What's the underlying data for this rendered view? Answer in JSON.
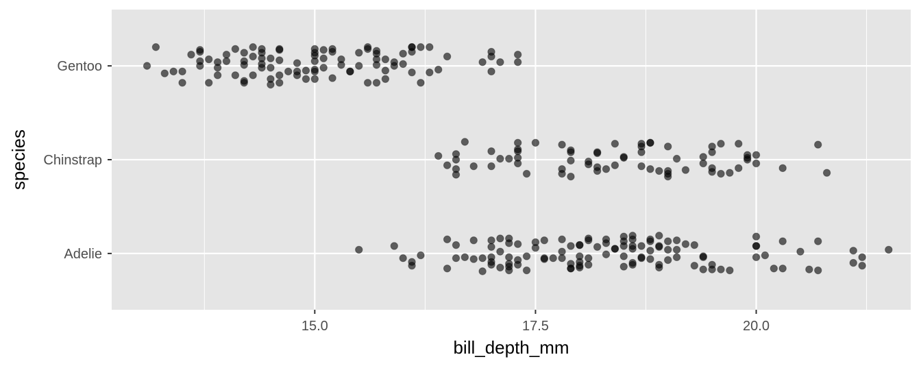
{
  "chart_data": {
    "type": "scatter",
    "title": "",
    "xlabel": "bill_depth_mm",
    "ylabel": "species",
    "xlim": [
      12.7,
      21.75
    ],
    "x_ticks": [
      15.0,
      17.5,
      20.0
    ],
    "x_tick_labels": [
      "15.0",
      "17.5",
      "20.0"
    ],
    "categories": [
      "Adelie",
      "Chinstrap",
      "Gentoo"
    ],
    "jitter": "vertical",
    "grid": true,
    "legend": "none",
    "point_color": "#000000",
    "point_opacity": 0.6,
    "panel_color": "#e5e5e5",
    "series": [
      {
        "category": "Gentoo",
        "points": [
          [
            13.1,
            0.0
          ],
          [
            13.2,
            0.2
          ],
          [
            13.3,
            -0.08
          ],
          [
            13.4,
            -0.06
          ],
          [
            13.5,
            -0.06
          ],
          [
            13.5,
            -0.18
          ],
          [
            13.6,
            0.12
          ],
          [
            13.7,
            0.17
          ],
          [
            13.7,
            0.15
          ],
          [
            13.7,
            0.05
          ],
          [
            13.7,
            0.0
          ],
          [
            13.8,
            0.07
          ],
          [
            13.8,
            -0.18
          ],
          [
            13.9,
            0.04
          ],
          [
            13.9,
            -0.02
          ],
          [
            13.9,
            -0.1
          ],
          [
            14.0,
            0.12
          ],
          [
            14.0,
            0.05
          ],
          [
            14.1,
            0.18
          ],
          [
            14.1,
            -0.1
          ],
          [
            14.2,
            0.14
          ],
          [
            14.2,
            0.05
          ],
          [
            14.2,
            0.01
          ],
          [
            14.2,
            -0.18
          ],
          [
            14.2,
            -0.16
          ],
          [
            14.3,
            0.2
          ],
          [
            14.3,
            0.1
          ],
          [
            14.3,
            -0.1
          ],
          [
            14.4,
            0.18
          ],
          [
            14.4,
            0.14
          ],
          [
            14.4,
            0.08
          ],
          [
            14.4,
            0.02
          ],
          [
            14.4,
            -0.02
          ],
          [
            14.5,
            0.08
          ],
          [
            14.5,
            -0.02
          ],
          [
            14.5,
            -0.14
          ],
          [
            14.5,
            -0.2
          ],
          [
            14.6,
            0.17
          ],
          [
            14.6,
            0.18
          ],
          [
            14.6,
            0.06
          ],
          [
            14.6,
            -0.1
          ],
          [
            14.6,
            -0.18
          ],
          [
            14.7,
            -0.06
          ],
          [
            14.8,
            0.03
          ],
          [
            14.8,
            -0.1
          ],
          [
            14.8,
            -0.06
          ],
          [
            14.9,
            -0.05
          ],
          [
            14.9,
            -0.14
          ],
          [
            15.0,
            0.18
          ],
          [
            15.0,
            0.14
          ],
          [
            15.0,
            0.11
          ],
          [
            15.0,
            0.05
          ],
          [
            15.0,
            -0.04
          ],
          [
            15.0,
            -0.14
          ],
          [
            15.0,
            -0.06
          ],
          [
            15.1,
            0.17
          ],
          [
            15.1,
            0.08
          ],
          [
            15.1,
            -0.02
          ],
          [
            15.2,
            0.15
          ],
          [
            15.2,
            0.18
          ],
          [
            15.2,
            -0.13
          ],
          [
            15.3,
            0.07
          ],
          [
            15.3,
            0.01
          ],
          [
            15.4,
            -0.06
          ],
          [
            15.4,
            -0.06
          ],
          [
            15.5,
            0.14
          ],
          [
            15.5,
            0.0
          ],
          [
            15.6,
            0.2
          ],
          [
            15.6,
            0.18
          ],
          [
            15.6,
            -0.18
          ],
          [
            15.7,
            0.16
          ],
          [
            15.7,
            0.13
          ],
          [
            15.7,
            0.07
          ],
          [
            15.7,
            0.01
          ],
          [
            15.7,
            -0.18
          ],
          [
            15.8,
            0.07
          ],
          [
            15.8,
            -0.05
          ],
          [
            15.8,
            -0.14
          ],
          [
            15.9,
            0.04
          ],
          [
            15.9,
            0.0
          ],
          [
            16.0,
            0.02
          ],
          [
            16.0,
            0.13
          ],
          [
            16.1,
            0.2
          ],
          [
            16.1,
            0.2
          ],
          [
            16.1,
            -0.07
          ],
          [
            16.1,
            0.15
          ],
          [
            16.2,
            0.2
          ],
          [
            16.2,
            -0.18
          ],
          [
            16.3,
            0.2
          ],
          [
            16.3,
            -0.07
          ],
          [
            16.4,
            -0.04
          ],
          [
            16.5,
            0.1
          ],
          [
            16.9,
            0.04
          ],
          [
            17.0,
            0.15
          ],
          [
            17.0,
            0.1
          ],
          [
            17.0,
            -0.06
          ],
          [
            17.1,
            0.04
          ],
          [
            17.3,
            0.12
          ],
          [
            17.3,
            0.04
          ]
        ]
      },
      {
        "category": "Chinstrap",
        "points": [
          [
            16.4,
            0.04
          ],
          [
            16.5,
            -0.06
          ],
          [
            16.6,
            0.06
          ],
          [
            16.6,
            -0.1
          ],
          [
            16.6,
            -0.16
          ],
          [
            16.6,
            0.0
          ],
          [
            16.7,
            0.19
          ],
          [
            16.8,
            -0.07
          ],
          [
            17.0,
            -0.07
          ],
          [
            17.0,
            0.09
          ],
          [
            17.1,
            0.01
          ],
          [
            17.2,
            0.01
          ],
          [
            17.3,
            0.18
          ],
          [
            17.3,
            0.11
          ],
          [
            17.3,
            0.09
          ],
          [
            17.3,
            -0.04
          ],
          [
            17.3,
            0.02
          ],
          [
            17.4,
            -0.15
          ],
          [
            17.5,
            0.18
          ],
          [
            17.8,
            0.16
          ],
          [
            17.8,
            -0.1
          ],
          [
            17.8,
            -0.15
          ],
          [
            17.9,
            0.08
          ],
          [
            17.9,
            -0.01
          ],
          [
            17.9,
            0.1
          ],
          [
            17.9,
            -0.18
          ],
          [
            18.1,
            -0.02
          ],
          [
            18.1,
            -0.05
          ],
          [
            18.2,
            -0.12
          ],
          [
            18.2,
            0.07
          ],
          [
            18.2,
            -0.08
          ],
          [
            18.2,
            0.08
          ],
          [
            18.3,
            -0.1
          ],
          [
            18.4,
            0.17
          ],
          [
            18.4,
            -0.06
          ],
          [
            18.5,
            0.03
          ],
          [
            18.5,
            0.02
          ],
          [
            18.7,
            0.17
          ],
          [
            18.7,
            0.14
          ],
          [
            18.7,
            -0.07
          ],
          [
            18.7,
            0.08
          ],
          [
            18.8,
            0.18
          ],
          [
            18.8,
            0.18
          ],
          [
            18.8,
            -0.1
          ],
          [
            18.9,
            -0.12
          ],
          [
            19.0,
            0.14
          ],
          [
            19.0,
            -0.12
          ],
          [
            19.0,
            -0.18
          ],
          [
            19.0,
            -0.15
          ],
          [
            19.1,
            0.01
          ],
          [
            19.2,
            -0.11
          ],
          [
            19.4,
            0.03
          ],
          [
            19.4,
            -0.04
          ],
          [
            19.5,
            0.08
          ],
          [
            19.5,
            -0.09
          ],
          [
            19.5,
            -0.13
          ],
          [
            19.5,
            0.14
          ],
          [
            19.6,
            -0.15
          ],
          [
            19.6,
            0.17
          ],
          [
            19.7,
            -0.14
          ],
          [
            19.8,
            0.17
          ],
          [
            19.8,
            -0.09
          ],
          [
            19.9,
            0.05
          ],
          [
            19.9,
            0.0
          ],
          [
            19.9,
            0.02
          ],
          [
            20.0,
            0.05
          ],
          [
            20.0,
            -0.04
          ],
          [
            20.3,
            -0.09
          ],
          [
            20.7,
            0.16
          ],
          [
            20.8,
            -0.14
          ]
        ]
      },
      {
        "category": "Adelie",
        "points": [
          [
            15.5,
            0.04
          ],
          [
            15.9,
            0.08
          ],
          [
            16.0,
            -0.05
          ],
          [
            16.1,
            -0.13
          ],
          [
            16.1,
            -0.09
          ],
          [
            16.2,
            -0.02
          ],
          [
            16.5,
            0.15
          ],
          [
            16.5,
            -0.16
          ],
          [
            16.6,
            -0.05
          ],
          [
            16.6,
            0.09
          ],
          [
            16.7,
            -0.04
          ],
          [
            16.8,
            -0.06
          ],
          [
            16.8,
            0.14
          ],
          [
            16.9,
            -0.05
          ],
          [
            16.9,
            -0.19
          ],
          [
            17.0,
            -0.12
          ],
          [
            17.0,
            0.14
          ],
          [
            17.0,
            -0.09
          ],
          [
            17.0,
            -0.04
          ],
          [
            17.0,
            0.07
          ],
          [
            17.1,
            -0.15
          ],
          [
            17.1,
            0.16
          ],
          [
            17.1,
            0.02
          ],
          [
            17.2,
            0.16
          ],
          [
            17.2,
            0.11
          ],
          [
            17.2,
            -0.11
          ],
          [
            17.2,
            -0.14
          ],
          [
            17.2,
            -0.04
          ],
          [
            17.2,
            -0.18
          ],
          [
            17.3,
            0.1
          ],
          [
            17.3,
            -0.12
          ],
          [
            17.3,
            -0.07
          ],
          [
            17.4,
            -0.03
          ],
          [
            17.4,
            -0.18
          ],
          [
            17.5,
            0.12
          ],
          [
            17.5,
            0.06
          ],
          [
            17.6,
            -0.05
          ],
          [
            17.6,
            -0.06
          ],
          [
            17.6,
            0.14
          ],
          [
            17.7,
            -0.05
          ],
          [
            17.8,
            0.02
          ],
          [
            17.8,
            0.15
          ],
          [
            17.8,
            -0.05
          ],
          [
            17.9,
            -0.16
          ],
          [
            17.9,
            0.08
          ],
          [
            17.9,
            -0.11
          ],
          [
            17.9,
            -0.16
          ],
          [
            18.0,
            -0.09
          ],
          [
            18.0,
            0.09
          ],
          [
            18.0,
            -0.13
          ],
          [
            18.0,
            -0.15
          ],
          [
            18.0,
            0.09
          ],
          [
            18.0,
            -0.03
          ],
          [
            18.1,
            0.16
          ],
          [
            18.1,
            -0.12
          ],
          [
            18.1,
            0.14
          ],
          [
            18.1,
            -0.05
          ],
          [
            18.2,
            0.07
          ],
          [
            18.3,
            -0.01
          ],
          [
            18.3,
            0.11
          ],
          [
            18.3,
            0.15
          ],
          [
            18.4,
            0.05
          ],
          [
            18.4,
            0.05
          ],
          [
            18.5,
            -0.03
          ],
          [
            18.5,
            -0.14
          ],
          [
            18.5,
            0.18
          ],
          [
            18.5,
            0.08
          ],
          [
            18.5,
            0.13
          ],
          [
            18.6,
            0.08
          ],
          [
            18.6,
            0.15
          ],
          [
            18.6,
            0.19
          ],
          [
            18.6,
            -0.12
          ],
          [
            18.6,
            0.05
          ],
          [
            18.6,
            -0.1
          ],
          [
            18.7,
            -0.05
          ],
          [
            18.7,
            0.08
          ],
          [
            18.7,
            -0.04
          ],
          [
            18.8,
            -0.06
          ],
          [
            18.8,
            0.15
          ],
          [
            18.8,
            0.13
          ],
          [
            18.8,
            0.03
          ],
          [
            18.9,
            0.19
          ],
          [
            18.9,
            -0.15
          ],
          [
            18.9,
            0.07
          ],
          [
            18.9,
            -0.12
          ],
          [
            18.9,
            0.08
          ],
          [
            19.0,
            0.04
          ],
          [
            19.0,
            0.13
          ],
          [
            19.0,
            -0.07
          ],
          [
            19.1,
            -0.04
          ],
          [
            19.1,
            0.04
          ],
          [
            19.1,
            0.14
          ],
          [
            19.2,
            0.1
          ],
          [
            19.3,
            -0.13
          ],
          [
            19.3,
            0.09
          ],
          [
            19.4,
            -0.03
          ],
          [
            19.4,
            -0.17
          ],
          [
            19.4,
            -0.04
          ],
          [
            19.5,
            -0.12
          ],
          [
            19.5,
            -0.17
          ],
          [
            19.6,
            -0.17
          ],
          [
            19.7,
            -0.18
          ],
          [
            20.0,
            -0.04
          ],
          [
            20.0,
            0.18
          ],
          [
            20.0,
            0.08
          ],
          [
            20.0,
            0.08
          ],
          [
            20.1,
            -0.02
          ],
          [
            20.2,
            -0.16
          ],
          [
            20.3,
            -0.16
          ],
          [
            20.3,
            0.13
          ],
          [
            20.5,
            0.02
          ],
          [
            20.6,
            -0.17
          ],
          [
            20.7,
            -0.18
          ],
          [
            20.7,
            0.13
          ],
          [
            21.1,
            0.03
          ],
          [
            21.1,
            -0.1
          ],
          [
            21.2,
            -0.13
          ],
          [
            21.2,
            -0.04
          ],
          [
            21.5,
            0.04
          ]
        ]
      }
    ]
  }
}
